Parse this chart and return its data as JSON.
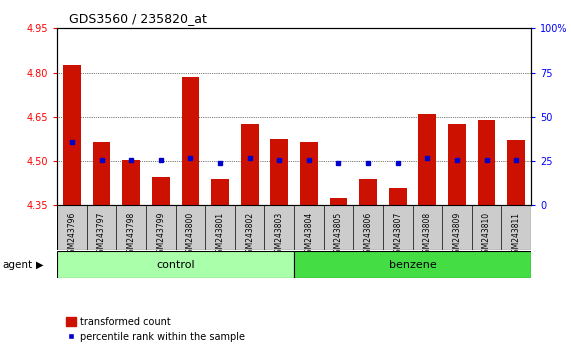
{
  "title": "GDS3560 / 235820_at",
  "samples": [
    "GSM243796",
    "GSM243797",
    "GSM243798",
    "GSM243799",
    "GSM243800",
    "GSM243801",
    "GSM243802",
    "GSM243803",
    "GSM243804",
    "GSM243805",
    "GSM243806",
    "GSM243807",
    "GSM243808",
    "GSM243809",
    "GSM243810",
    "GSM243811"
  ],
  "red_values": [
    4.825,
    4.565,
    4.505,
    4.445,
    4.785,
    4.44,
    4.625,
    4.575,
    4.565,
    4.375,
    4.44,
    4.41,
    4.66,
    4.625,
    4.64,
    4.57
  ],
  "blue_values": [
    4.565,
    4.505,
    4.505,
    4.505,
    4.51,
    4.495,
    4.51,
    4.505,
    4.505,
    4.495,
    4.495,
    4.495,
    4.51,
    4.505,
    4.505,
    4.505
  ],
  "ylim": [
    4.35,
    4.95
  ],
  "ylim_right": [
    0,
    100
  ],
  "yticks_left": [
    4.35,
    4.5,
    4.65,
    4.8,
    4.95
  ],
  "yticks_right": [
    0,
    25,
    50,
    75,
    100
  ],
  "ytick_labels_right": [
    "0",
    "25",
    "50",
    "75",
    "100%"
  ],
  "control_samples": 8,
  "bar_color": "#cc1100",
  "dot_color": "#0000cc",
  "bar_bottom": 4.35,
  "control_color": "#aaffaa",
  "benzene_color": "#44dd44",
  "tick_bg_color": "#cccccc",
  "control_label": "control",
  "benzene_label": "benzene",
  "agent_label": "agent",
  "legend_red": "transformed count",
  "legend_blue": "percentile rank within the sample",
  "bg_color": "#ffffff",
  "bar_width": 0.6,
  "fig_width": 5.71,
  "fig_height": 3.54
}
